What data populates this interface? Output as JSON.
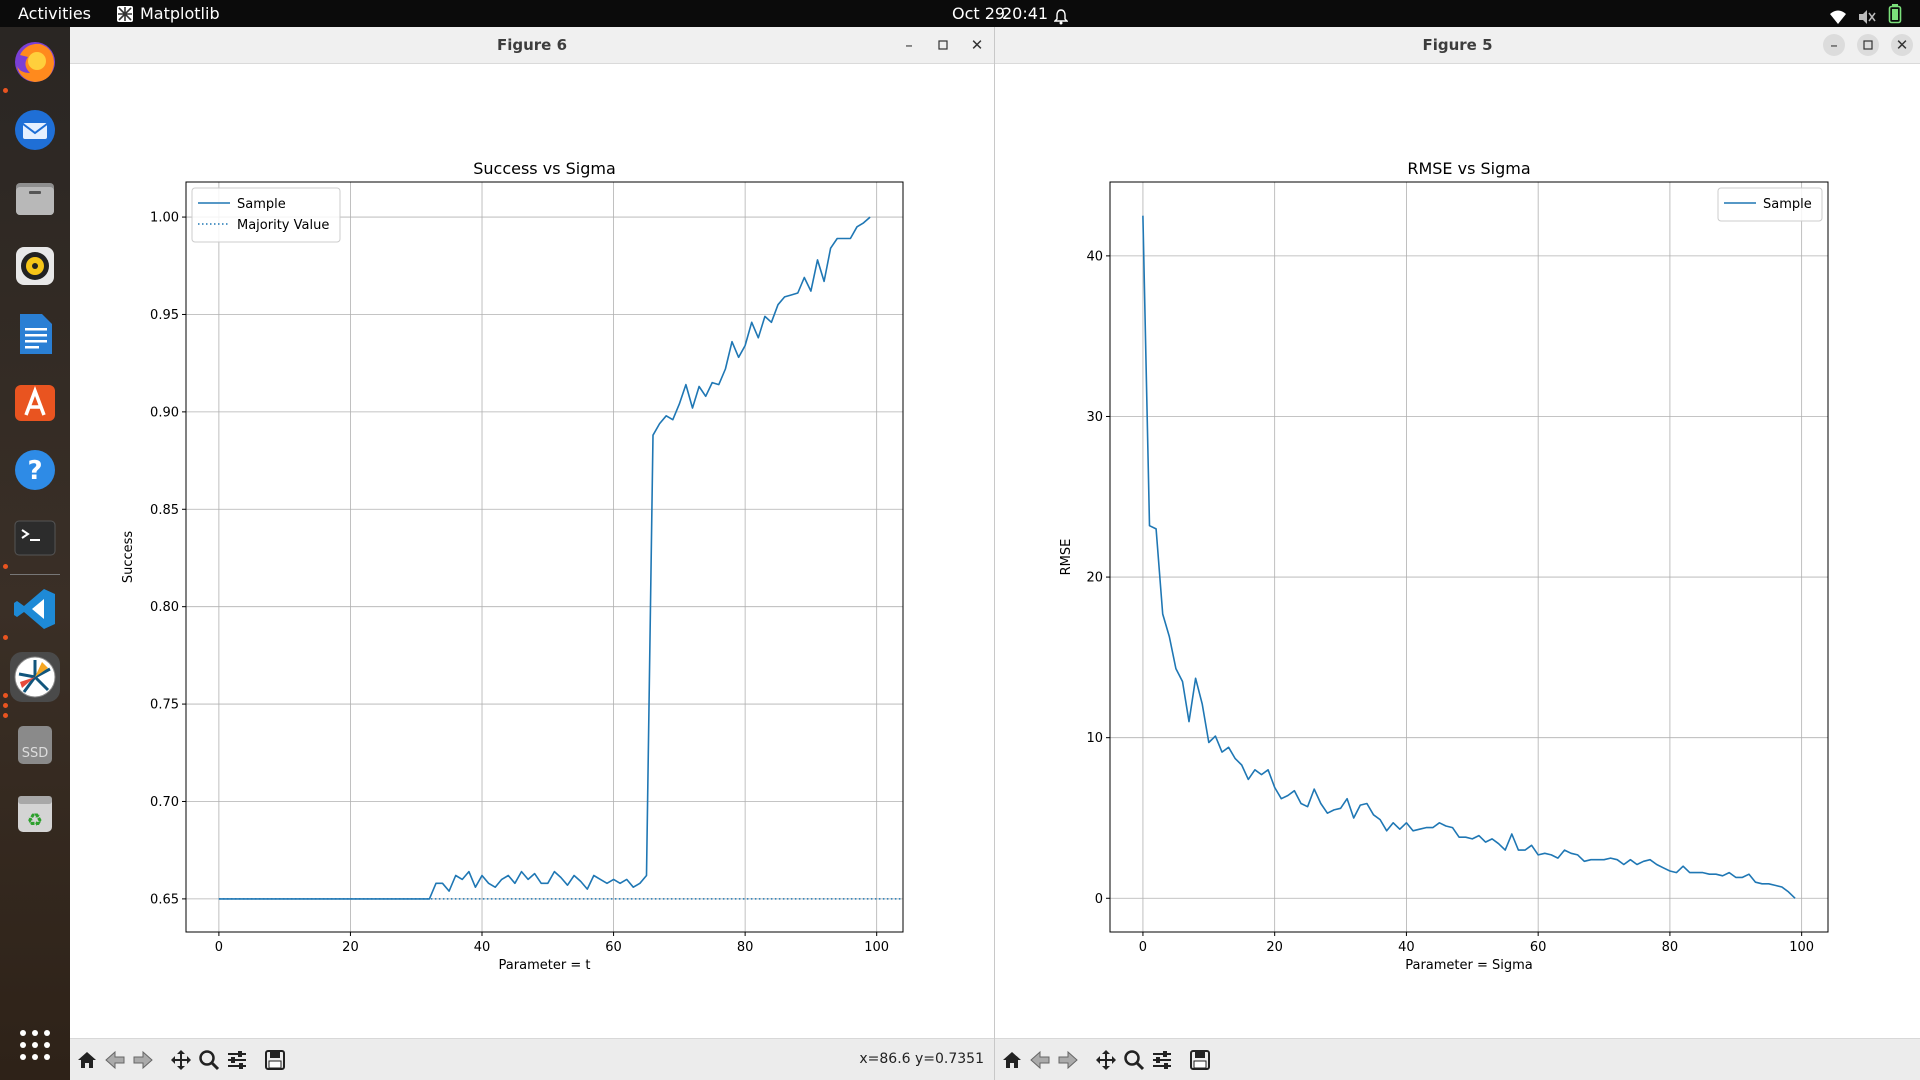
{
  "topbar": {
    "activities": "Activities",
    "app_name": "Matplotlib",
    "date": "Oct 29",
    "time": "20:41"
  },
  "dock": {
    "items": [
      {
        "name": "firefox-icon",
        "running": true
      },
      {
        "name": "thunderbird-icon",
        "running": false
      },
      {
        "name": "files-icon",
        "running": false
      },
      {
        "name": "rhythmbox-icon",
        "running": false
      },
      {
        "name": "libreoffice-writer-icon",
        "running": false
      },
      {
        "name": "app-center-icon",
        "running": false
      },
      {
        "name": "help-icon",
        "running": false
      },
      {
        "name": "terminal-icon",
        "running": true
      },
      {
        "name": "vscode-icon",
        "running": true
      },
      {
        "name": "matplotlib-icon",
        "running": true
      },
      {
        "name": "ssd-drive-icon",
        "running": false,
        "label": "SSD"
      },
      {
        "name": "trash-icon",
        "running": false
      }
    ]
  },
  "windows": [
    {
      "title": "Figure 6",
      "coords": "x=86.6 y=0.7351",
      "chart_data": {
        "type": "line",
        "title": "Success vs Sigma",
        "xlabel": "Parameter = t",
        "ylabel": "Success",
        "xlim": [
          -5,
          104
        ],
        "ylim": [
          0.633,
          1.018
        ],
        "xticks": [
          0,
          20,
          40,
          60,
          80,
          100
        ],
        "yticks": [
          "0.65",
          "0.70",
          "0.75",
          "0.80",
          "0.85",
          "0.90",
          "0.95",
          "1.00"
        ],
        "grid": true,
        "legend_position": "upper left",
        "legend": [
          "Sample",
          "Majority Value"
        ],
        "color": "#1f77b4",
        "series": [
          {
            "name": "Sample",
            "x": [
              0,
              1,
              2,
              3,
              4,
              5,
              6,
              7,
              8,
              9,
              10,
              11,
              12,
              13,
              14,
              15,
              16,
              17,
              18,
              19,
              20,
              21,
              22,
              23,
              24,
              25,
              26,
              27,
              28,
              29,
              30,
              31,
              32,
              33,
              34,
              35,
              36,
              37,
              38,
              39,
              40,
              41,
              42,
              43,
              44,
              45,
              46,
              47,
              48,
              49,
              50,
              51,
              52,
              53,
              54,
              55,
              56,
              57,
              58,
              59,
              60,
              61,
              62,
              63,
              64,
              65,
              66,
              67,
              68,
              69,
              70,
              71,
              72,
              73,
              74,
              75,
              76,
              77,
              78,
              79,
              80,
              81,
              82,
              83,
              84,
              85,
              86,
              87,
              88,
              89,
              90,
              91,
              92,
              93,
              94,
              95,
              96,
              97,
              98,
              99
            ],
            "y": [
              0.65,
              0.65,
              0.65,
              0.65,
              0.65,
              0.65,
              0.65,
              0.65,
              0.65,
              0.65,
              0.65,
              0.65,
              0.65,
              0.65,
              0.65,
              0.65,
              0.65,
              0.65,
              0.65,
              0.65,
              0.65,
              0.65,
              0.65,
              0.65,
              0.65,
              0.65,
              0.65,
              0.65,
              0.65,
              0.65,
              0.65,
              0.65,
              0.65,
              0.658,
              0.658,
              0.654,
              0.662,
              0.66,
              0.664,
              0.656,
              0.662,
              0.658,
              0.656,
              0.66,
              0.662,
              0.658,
              0.664,
              0.66,
              0.663,
              0.658,
              0.658,
              0.664,
              0.661,
              0.657,
              0.662,
              0.659,
              0.655,
              0.662,
              0.66,
              0.658,
              0.66,
              0.658,
              0.66,
              0.656,
              0.658,
              0.662,
              0.888,
              0.894,
              0.898,
              0.896,
              0.904,
              0.914,
              0.902,
              0.913,
              0.908,
              0.915,
              0.914,
              0.922,
              0.936,
              0.928,
              0.934,
              0.946,
              0.938,
              0.949,
              0.946,
              0.955,
              0.959,
              0.96,
              0.961,
              0.969,
              0.962,
              0.978,
              0.967,
              0.984,
              0.989,
              0.989,
              0.989,
              0.995,
              0.997,
              1.0
            ]
          },
          {
            "name": "Majority Value",
            "style": "dotted",
            "x": [
              0,
              104
            ],
            "y": [
              0.65,
              0.65
            ]
          }
        ]
      }
    },
    {
      "title": "Figure 5",
      "coords": "",
      "chart_data": {
        "type": "line",
        "title": "RMSE vs Sigma",
        "xlabel": "Parameter = Sigma",
        "ylabel": "RMSE",
        "xlim": [
          -5,
          104
        ],
        "ylim": [
          -2.1,
          44.6
        ],
        "xticks": [
          0,
          20,
          40,
          60,
          80,
          100
        ],
        "yticks": [
          "0",
          "10",
          "20",
          "30",
          "40"
        ],
        "grid": true,
        "legend_position": "upper right",
        "legend": [
          "Sample"
        ],
        "color": "#1f77b4",
        "series": [
          {
            "name": "Sample",
            "x": [
              0,
              1,
              2,
              3,
              4,
              5,
              6,
              7,
              8,
              9,
              10,
              11,
              12,
              13,
              14,
              15,
              16,
              17,
              18,
              19,
              20,
              21,
              22,
              23,
              24,
              25,
              26,
              27,
              28,
              29,
              30,
              31,
              32,
              33,
              34,
              35,
              36,
              37,
              38,
              39,
              40,
              41,
              42,
              43,
              44,
              45,
              46,
              47,
              48,
              49,
              50,
              51,
              52,
              53,
              54,
              55,
              56,
              57,
              58,
              59,
              60,
              61,
              62,
              63,
              64,
              65,
              66,
              67,
              68,
              69,
              70,
              71,
              72,
              73,
              74,
              75,
              76,
              77,
              78,
              79,
              80,
              81,
              82,
              83,
              84,
              85,
              86,
              87,
              88,
              89,
              90,
              91,
              92,
              93,
              94,
              95,
              96,
              97,
              98,
              99
            ],
            "y": [
              42.5,
              23.2,
              23.0,
              17.7,
              16.3,
              14.3,
              13.5,
              11.0,
              13.7,
              12.1,
              9.7,
              10.1,
              9.1,
              9.4,
              8.7,
              8.3,
              7.4,
              8.0,
              7.7,
              8.0,
              6.9,
              6.2,
              6.4,
              6.7,
              5.9,
              5.7,
              6.8,
              5.9,
              5.3,
              5.5,
              5.6,
              6.2,
              5.0,
              5.8,
              5.9,
              5.2,
              4.9,
              4.2,
              4.7,
              4.3,
              4.7,
              4.2,
              4.3,
              4.4,
              4.4,
              4.7,
              4.5,
              4.4,
              3.8,
              3.8,
              3.7,
              3.9,
              3.5,
              3.7,
              3.4,
              3.0,
              4.0,
              3.0,
              3.0,
              3.3,
              2.7,
              2.8,
              2.7,
              2.5,
              3.0,
              2.8,
              2.7,
              2.3,
              2.4,
              2.4,
              2.4,
              2.5,
              2.4,
              2.1,
              2.4,
              2.1,
              2.3,
              2.4,
              2.1,
              1.9,
              1.7,
              1.6,
              2.0,
              1.6,
              1.6,
              1.6,
              1.5,
              1.5,
              1.4,
              1.6,
              1.3,
              1.3,
              1.5,
              1.0,
              0.9,
              0.9,
              0.8,
              0.7,
              0.4,
              0.0
            ]
          }
        ]
      }
    }
  ]
}
